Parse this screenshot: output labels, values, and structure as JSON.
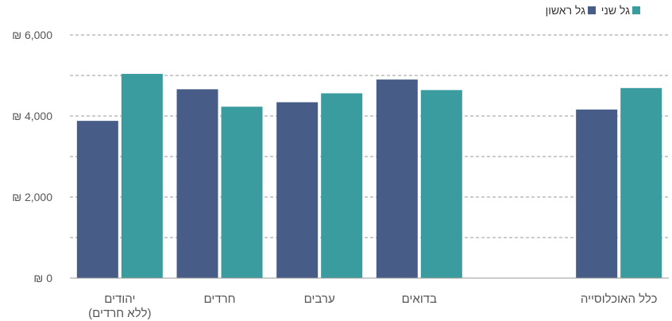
{
  "chart_data": {
    "type": "bar",
    "categories": [
      {
        "label": [
          "יהודים",
          "(ללא חרדים)"
        ]
      },
      {
        "label": [
          "חרדים"
        ]
      },
      {
        "label": [
          "ערבים"
        ]
      },
      {
        "label": [
          "בדואים"
        ]
      },
      {
        "label": [
          ""
        ]
      },
      {
        "label": [
          "כלל האוכלוסייה"
        ]
      }
    ],
    "series": [
      {
        "name": "גל ראשון",
        "color": "#475d87",
        "values": [
          3880,
          4660,
          4340,
          4900,
          null,
          4160
        ]
      },
      {
        "name": "גל שני",
        "color": "#3a9c9e",
        "values": [
          5040,
          4230,
          4560,
          4640,
          null,
          4690
        ]
      }
    ],
    "ylim": [
      0,
      6000
    ],
    "yticks": [
      {
        "value": 0,
        "label": "₪ 0"
      },
      {
        "value": 1000,
        "label": ""
      },
      {
        "value": 2000,
        "label": "₪ 2,000"
      },
      {
        "value": 3000,
        "label": ""
      },
      {
        "value": 4000,
        "label": "₪ 4,000"
      },
      {
        "value": 5000,
        "label": ""
      },
      {
        "value": 6000,
        "label": "₪ 6,000"
      }
    ],
    "grid": true,
    "legend_position": "top-right"
  }
}
